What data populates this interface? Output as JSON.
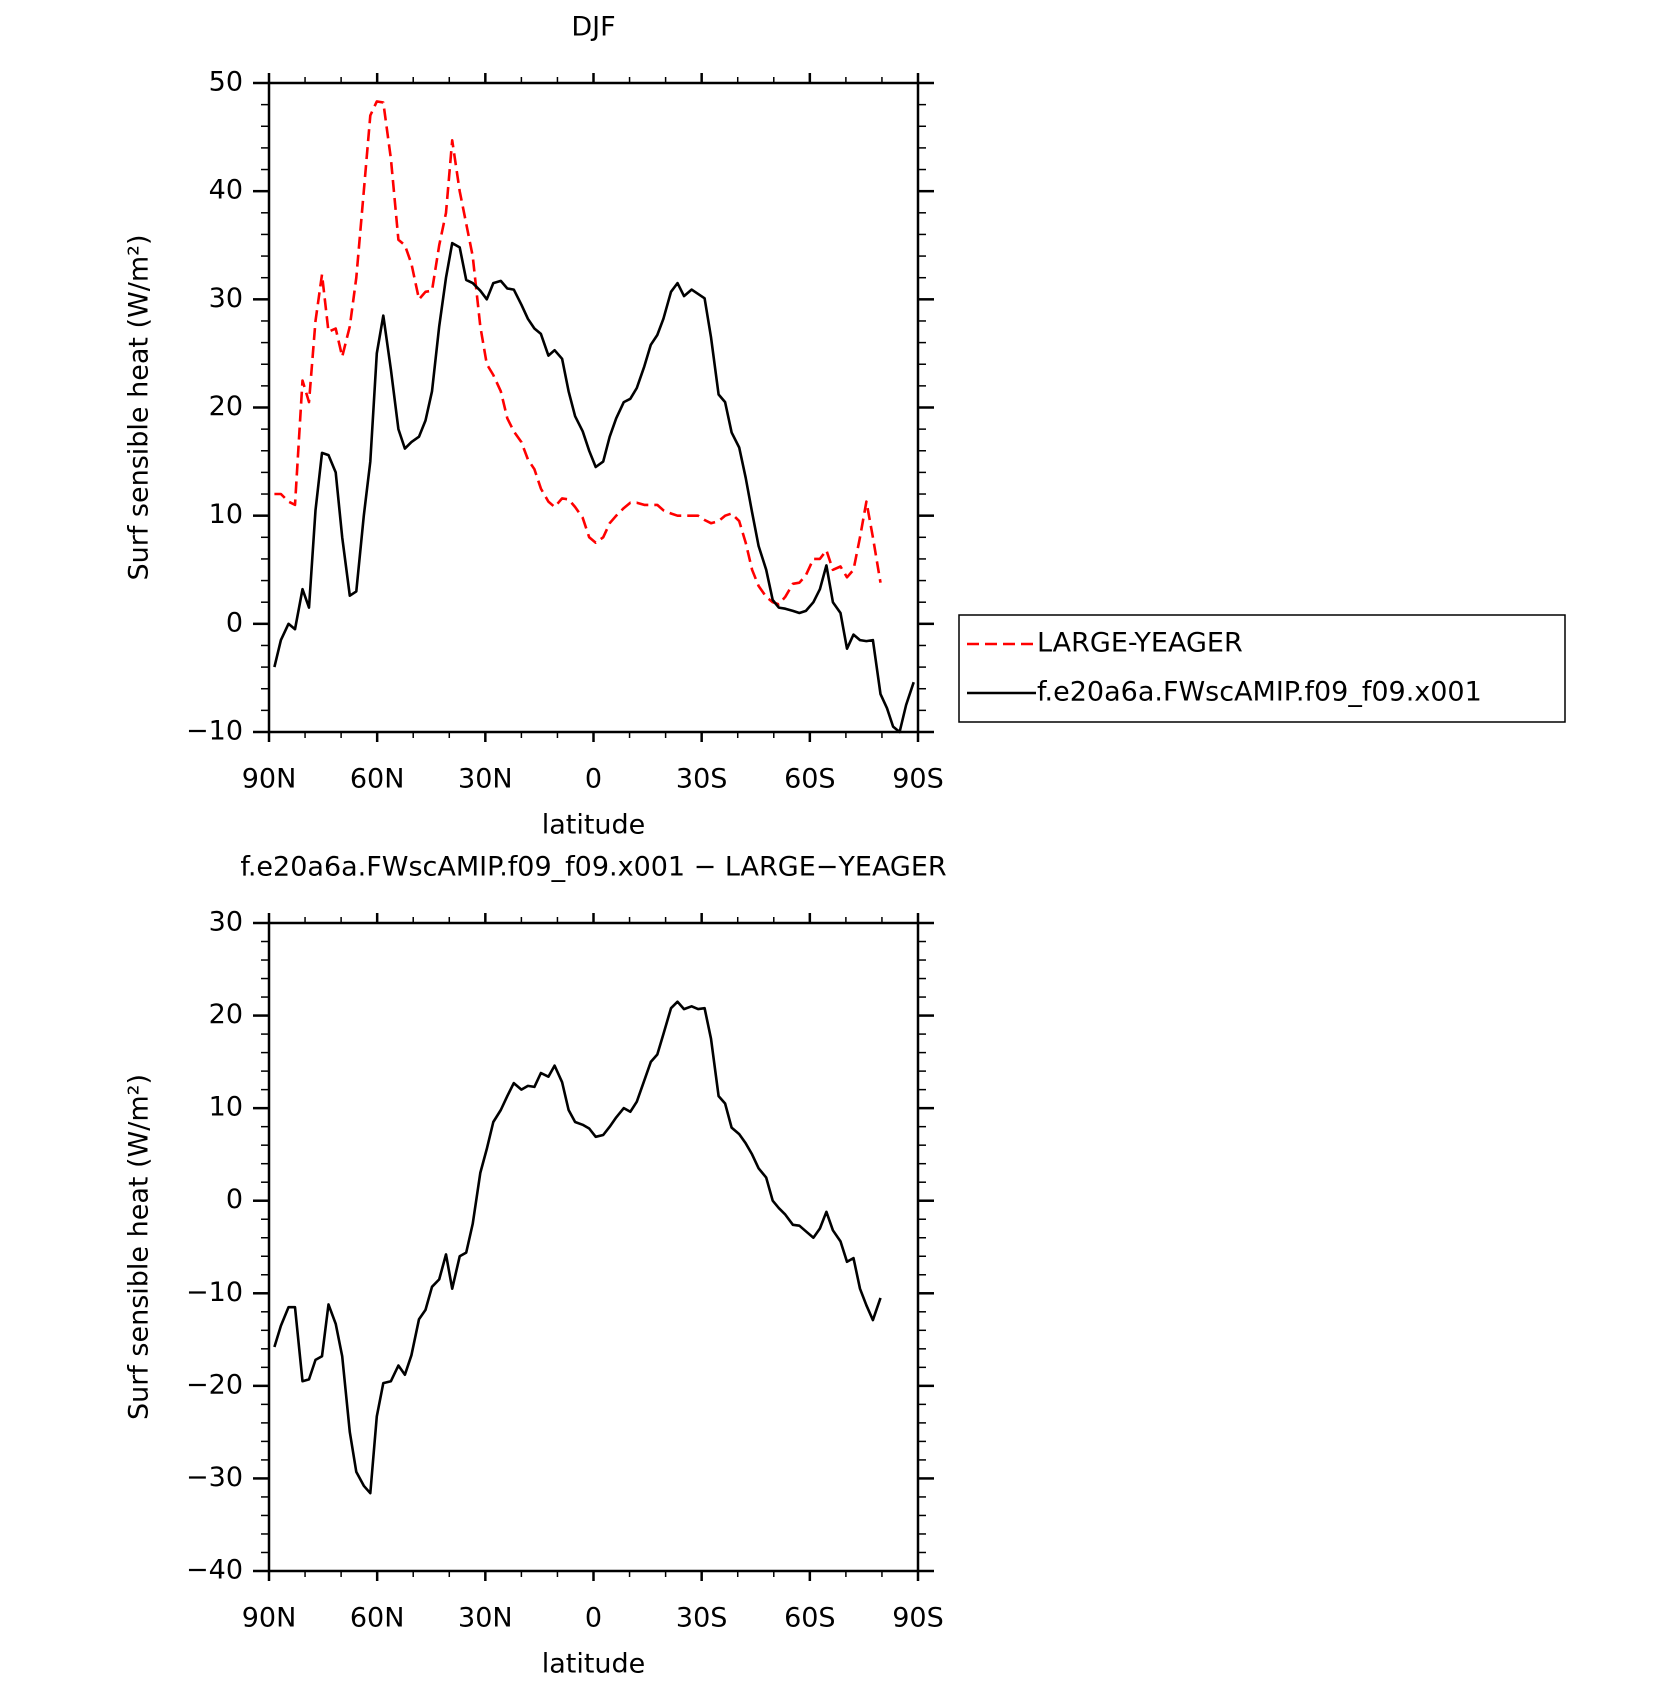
{
  "chart_data": [
    {
      "type": "line",
      "title": "DJF",
      "xlabel": "latitude",
      "ylabel": "Surf sensible heat (W/m²)",
      "xlim": [
        90,
        -90
      ],
      "xticks": [
        {
          "value": 90,
          "label": "90N"
        },
        {
          "value": 60,
          "label": "60N"
        },
        {
          "value": 30,
          "label": "30N"
        },
        0,
        {
          "value": -30,
          "label": "30S"
        },
        {
          "value": -60,
          "label": "60S"
        },
        {
          "value": -90,
          "label": "90S"
        }
      ],
      "ylim": [
        -10,
        50
      ],
      "yticks": [
        {
          "value": -10,
          "label": "−10"
        },
        0,
        10,
        20,
        30,
        40,
        50
      ],
      "legend": "right",
      "x": [
        88.5,
        86.7,
        84.6,
        82.8,
        80.7,
        78.9,
        77.1,
        75.3,
        73.5,
        71.5,
        69.7,
        67.6,
        65.8,
        63.7,
        61.9,
        60.1,
        58.3,
        56.2,
        54.1,
        52.3,
        50.5,
        48.4,
        46.6,
        44.8,
        42.8,
        40.9,
        39.2,
        37.1,
        35.3,
        33.5,
        31.4,
        29.6,
        27.8,
        25.7,
        23.9,
        22.1,
        20,
        18.2,
        16.4,
        14.6,
        12.5,
        10.8,
        8.7,
        6.9,
        5.1,
        3,
        1.2,
        -0.6,
        -2.7,
        -4.5,
        -6.3,
        -8.4,
        -10.2,
        -12,
        -14.1,
        -15.9,
        -17.7,
        -19.4,
        -21.5,
        -23.3,
        -25.1,
        -27.2,
        -29,
        -30.8,
        -32.6,
        -34.7,
        -36.5,
        -38.3,
        -40.4,
        -42.2,
        -44,
        -45.8,
        -47.9,
        -49.7,
        -51.4,
        -53.2,
        -55.3,
        -57.1,
        -58.9,
        -61,
        -62.8,
        -64.6,
        -66.4,
        -68.5,
        -70.3,
        -72.1,
        -73.9,
        -75.7,
        -77.5,
        -79.6,
        -81.4,
        -83.1,
        -84.9,
        -86.7,
        -88.8
      ],
      "series": [
        {
          "name": "LARGE-YEAGER",
          "color": "#ff0000",
          "line_style": "dashed",
          "values": [
            12,
            12,
            11.3,
            11,
            22.5,
            20.5,
            28,
            32.3,
            27,
            27.3,
            24.7,
            27.5,
            32,
            40,
            47,
            48.3,
            48.2,
            43,
            35.5,
            35,
            33.3,
            30,
            30.7,
            30.8,
            35,
            38,
            44.7,
            40,
            37,
            34,
            27.5,
            24,
            23,
            21.5,
            19,
            17.8,
            16.8,
            15.2,
            14.3,
            12.5,
            11.3,
            10.8,
            11.6,
            11.5,
            10.8,
            9.8,
            8,
            7.5,
            8,
            9.3,
            10,
            10.7,
            11.2,
            11.2,
            11,
            11,
            11,
            10.5,
            10.2,
            10,
            10,
            10,
            10,
            9.6,
            9.3,
            9.5,
            10,
            10.2,
            9.5,
            7.5,
            5,
            3.5,
            2.5,
            2,
            1.8,
            2.5,
            3.7,
            3.8,
            4.5,
            6,
            6,
            6.8,
            5,
            5.3,
            4.3,
            5,
            8,
            11.3,
            8,
            3.8,
            null,
            null,
            null,
            null,
            null
          ]
        },
        {
          "name": "f.e20a6a.FWscAMIP.f09_f09.x001",
          "color": "#000000",
          "line_style": "solid",
          "values": [
            -4,
            -1.5,
            0,
            -0.5,
            3.2,
            1.5,
            10.5,
            15.8,
            15.6,
            14,
            8,
            2.6,
            3,
            10,
            15,
            25,
            28.5,
            23.5,
            18,
            16.2,
            16.8,
            17.3,
            18.8,
            21.5,
            27.5,
            32,
            35.2,
            34.8,
            31.8,
            31.5,
            30.8,
            30,
            31.5,
            31.7,
            31,
            30.9,
            29.5,
            28.2,
            27.3,
            26.8,
            24.8,
            25.3,
            24.5,
            21.5,
            19.2,
            17.8,
            16,
            14.5,
            15,
            17.3,
            19,
            20.5,
            20.8,
            21.8,
            23.8,
            25.8,
            26.7,
            28.2,
            30.7,
            31.5,
            30.3,
            30.9,
            30.5,
            30.1,
            26.5,
            21.2,
            20.5,
            17.7,
            16.3,
            13.5,
            10.3,
            7.2,
            5,
            2.2,
            1.5,
            1.4,
            1.2,
            1,
            1.2,
            2,
            3.2,
            5.4,
            2,
            1,
            -2.3,
            -1,
            -1.5,
            -1.6,
            -1.5,
            -6.5,
            -7.8,
            -9.5,
            -10,
            -7.5,
            -5.4
          ]
        }
      ]
    },
    {
      "type": "line",
      "title": "f.e20a6a.FWscAMIP.f09_f09.x001 − LARGE−YEAGER",
      "xlabel": "latitude",
      "ylabel": "Surf sensible heat (W/m²)",
      "xlim": [
        90,
        -90
      ],
      "xticks": [
        {
          "value": 90,
          "label": "90N"
        },
        {
          "value": 60,
          "label": "60N"
        },
        {
          "value": 30,
          "label": "30N"
        },
        0,
        {
          "value": -30,
          "label": "30S"
        },
        {
          "value": -60,
          "label": "60S"
        },
        {
          "value": -90,
          "label": "90S"
        }
      ],
      "ylim": [
        -40,
        30
      ],
      "yticks": [
        {
          "value": -40,
          "label": "−40"
        },
        {
          "value": -30,
          "label": "−30"
        },
        {
          "value": -20,
          "label": "−20"
        },
        {
          "value": -10,
          "label": "−10"
        },
        0,
        10,
        20,
        30
      ],
      "x": [
        88.5,
        86.7,
        84.6,
        82.8,
        80.7,
        78.9,
        77.1,
        75.3,
        73.5,
        71.5,
        69.7,
        67.6,
        65.8,
        63.7,
        61.9,
        60.1,
        58.3,
        56.2,
        54.1,
        52.3,
        50.5,
        48.4,
        46.6,
        44.8,
        42.8,
        40.9,
        39.2,
        37.1,
        35.3,
        33.5,
        31.4,
        29.6,
        27.8,
        25.7,
        23.9,
        22.1,
        20,
        18.2,
        16.4,
        14.6,
        12.5,
        10.8,
        8.7,
        6.9,
        5.1,
        3,
        1.2,
        -0.6,
        -2.7,
        -4.5,
        -6.3,
        -8.4,
        -10.2,
        -12,
        -14.1,
        -15.9,
        -17.7,
        -19.4,
        -21.5,
        -23.3,
        -25.1,
        -27.2,
        -29,
        -30.8,
        -32.6,
        -34.7,
        -36.5,
        -38.3,
        -40.4,
        -42.2,
        -44,
        -45.8,
        -47.9,
        -49.7,
        -51.4,
        -53.2,
        -55.3,
        -57.1,
        -58.9,
        -61,
        -62.8,
        -64.6,
        -66.4,
        -68.5,
        -70.3,
        -72.1,
        -73.9,
        -75.7,
        -77.5,
        -79.6
      ],
      "series": [
        {
          "color": "#000000",
          "line_style": "solid",
          "values": [
            -15.8,
            -13.5,
            -11.5,
            -11.5,
            -19.5,
            -19.3,
            -17.2,
            -16.8,
            -11.2,
            -13.3,
            -16.8,
            -25,
            -29.3,
            -30.8,
            -31.6,
            -23.3,
            -19.7,
            -19.5,
            -17.8,
            -18.8,
            -16.7,
            -12.8,
            -11.8,
            -9.3,
            -8.5,
            -5.8,
            -9.5,
            -6,
            -5.6,
            -2.5,
            3,
            5.6,
            8.5,
            9.8,
            11.3,
            12.7,
            12,
            12.4,
            12.3,
            13.8,
            13.4,
            14.6,
            12.8,
            9.8,
            8.5,
            8.2,
            7.8,
            6.9,
            7.1,
            8,
            9,
            10,
            9.6,
            10.7,
            13,
            15,
            15.8,
            18,
            20.8,
            21.5,
            20.7,
            21,
            20.7,
            20.8,
            17.5,
            11.3,
            10.5,
            7.9,
            7.2,
            6.2,
            5,
            3.5,
            2.5,
            0,
            -0.8,
            -1.5,
            -2.6,
            -2.7,
            -3.3,
            -4,
            -3,
            -1.2,
            -3.2,
            -4.4,
            -6.6,
            -6.2,
            -9.5,
            -11.3,
            -12.9,
            -10.5
          ]
        }
      ]
    }
  ]
}
